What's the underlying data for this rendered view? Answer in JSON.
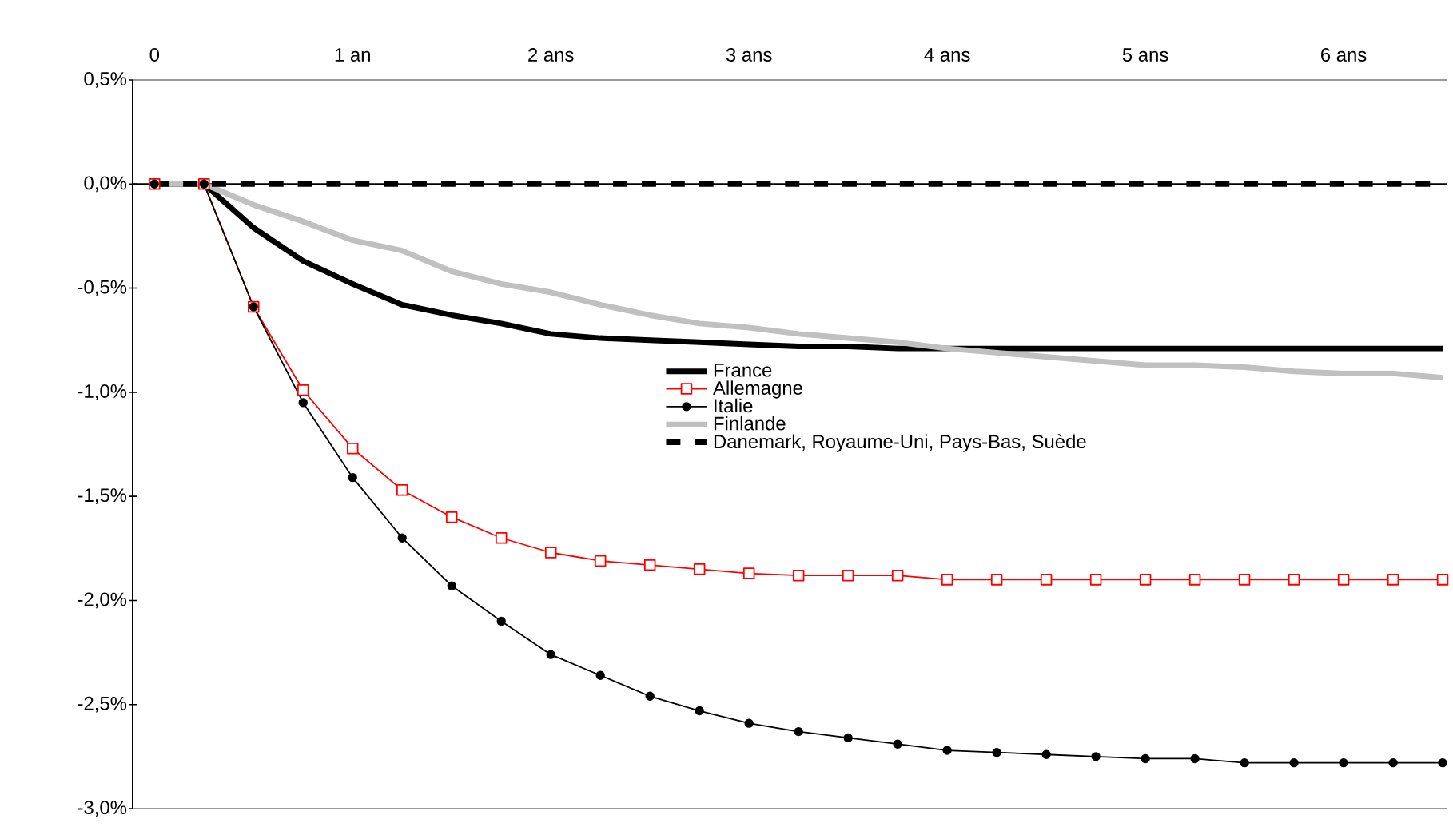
{
  "chart_data": {
    "type": "line",
    "x": [
      0,
      0.25,
      0.5,
      0.75,
      1,
      1.25,
      1.5,
      1.75,
      2,
      2.25,
      2.5,
      2.75,
      3,
      3.25,
      3.5,
      3.75,
      4,
      4.25,
      4.5,
      4.75,
      5,
      5.25,
      5.5,
      5.75,
      6,
      6.25,
      6.5
    ],
    "series": [
      {
        "name": "France",
        "color": "#000000",
        "marker": "none",
        "line_style": "solid",
        "values": [
          0,
          0,
          -0.21,
          -0.37,
          -0.48,
          -0.58,
          -0.63,
          -0.67,
          -0.72,
          -0.74,
          -0.75,
          -0.76,
          -0.77,
          -0.78,
          -0.78,
          -0.79,
          -0.79,
          -0.79,
          -0.79,
          -0.79,
          -0.79,
          -0.79,
          -0.79,
          -0.79,
          -0.79,
          -0.79,
          -0.79
        ]
      },
      {
        "name": "Allemagne",
        "color": "#ff0000",
        "marker": "square",
        "line_style": "solid",
        "values": [
          0,
          0,
          -0.59,
          -0.99,
          -1.27,
          -1.47,
          -1.6,
          -1.7,
          -1.77,
          -1.81,
          -1.83,
          -1.85,
          -1.87,
          -1.88,
          -1.88,
          -1.88,
          -1.9,
          -1.9,
          -1.9,
          -1.9,
          -1.9,
          -1.9,
          -1.9,
          -1.9,
          -1.9,
          -1.9,
          -1.9
        ]
      },
      {
        "name": "Italie",
        "color": "#000000",
        "marker": "circle",
        "line_style": "solid",
        "values": [
          0,
          0,
          -0.59,
          -1.05,
          -1.41,
          -1.7,
          -1.93,
          -2.1,
          -2.26,
          -2.36,
          -2.46,
          -2.53,
          -2.59,
          -2.63,
          -2.66,
          -2.69,
          -2.72,
          -2.73,
          -2.74,
          -2.75,
          -2.76,
          -2.76,
          -2.78,
          -2.78,
          -2.78,
          -2.78,
          -2.78
        ]
      },
      {
        "name": "Finlande",
        "color": "#c0c0c0",
        "marker": "none",
        "line_style": "solid",
        "values": [
          0,
          0,
          -0.1,
          -0.18,
          -0.27,
          -0.32,
          -0.42,
          -0.48,
          -0.52,
          -0.58,
          -0.63,
          -0.67,
          -0.69,
          -0.72,
          -0.74,
          -0.76,
          -0.79,
          -0.81,
          -0.83,
          -0.85,
          -0.87,
          -0.87,
          -0.88,
          -0.9,
          -0.91,
          -0.91,
          -0.93
        ]
      },
      {
        "name": "Danemark, Royaume-Uni, Pays-Bas, Suède",
        "color": "#000000",
        "marker": "none",
        "line_style": "dashed",
        "values": [
          0,
          0,
          0,
          0,
          0,
          0,
          0,
          0,
          0,
          0,
          0,
          0,
          0,
          0,
          0,
          0,
          0,
          0,
          0,
          0,
          0,
          0,
          0,
          0,
          0,
          0,
          0
        ]
      }
    ],
    "xlim": [
      -0.11,
      6.52
    ],
    "xticks": [
      0,
      {
        "value": 1,
        "label": "1 an"
      },
      {
        "value": 2,
        "label": "2 ans"
      },
      {
        "value": 3,
        "label": "3 ans"
      },
      {
        "value": 4,
        "label": "4 ans"
      },
      {
        "value": 5,
        "label": "5 ans"
      },
      {
        "value": 6,
        "label": "6 ans"
      }
    ],
    "ylim": [
      -3,
      0.5
    ],
    "yticks": [
      {
        "value": -3,
        "label": "-3,0%"
      },
      {
        "value": -2.5,
        "label": "-2,5%"
      },
      {
        "value": -2,
        "label": "-2,0%"
      },
      {
        "value": -1.5,
        "label": "-1,5%"
      },
      {
        "value": -1,
        "label": "-1,0%"
      },
      {
        "value": -0.5,
        "label": "-0,5%"
      },
      {
        "value": 0,
        "label": "0,0%"
      },
      {
        "value": 0.5,
        "label": "0,5%"
      }
    ],
    "legend": "right",
    "grid": false
  }
}
